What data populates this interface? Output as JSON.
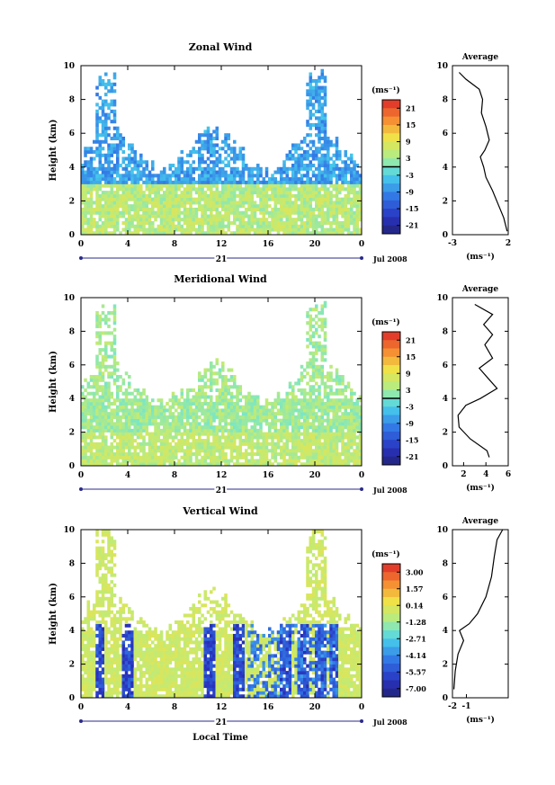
{
  "figure": {
    "date_label": "Jul 2008",
    "day_label": "21",
    "xlabel": "Local Time",
    "ylabel": "Height (km)",
    "unit_label": "(ms⁻¹)",
    "avg_title": "Average",
    "x_ticks": [
      "0",
      "4",
      "8",
      "12",
      "16",
      "20",
      "0"
    ]
  },
  "chart_data": [
    {
      "type": "heatmap",
      "title": "Zonal Wind",
      "xlabel": "",
      "ylabel": "Height (km)",
      "xlim": [
        0,
        24
      ],
      "ylim": [
        0,
        10
      ],
      "y_ticks": [
        0,
        2,
        4,
        6,
        8,
        10
      ],
      "colorbar": {
        "label": "(ms⁻¹)",
        "ticks": [
          "21",
          "15",
          "9",
          "3",
          "-3",
          "-9",
          "-15",
          "-21"
        ],
        "range": [
          -24,
          24
        ]
      },
      "contour_level": 0,
      "profile": {
        "title": "Average",
        "xlim": [
          -3,
          2
        ],
        "x_ticks": [
          "-3",
          "2"
        ],
        "ylim": [
          0,
          10
        ],
        "y_ticks": [
          0,
          2,
          4,
          6,
          8,
          10
        ],
        "xlabel": "(ms⁻¹)",
        "points": [
          [
            1.9,
            0.2
          ],
          [
            1.6,
            1.0
          ],
          [
            1.1,
            1.8
          ],
          [
            0.6,
            2.6
          ],
          [
            0.0,
            3.4
          ],
          [
            -0.2,
            4.0
          ],
          [
            -0.5,
            4.6
          ],
          [
            -0.1,
            5.0
          ],
          [
            0.3,
            5.6
          ],
          [
            0.0,
            6.4
          ],
          [
            -0.4,
            7.2
          ],
          [
            -0.3,
            8.0
          ],
          [
            -0.6,
            8.6
          ],
          [
            -1.8,
            9.2
          ],
          [
            -2.4,
            9.6
          ]
        ]
      }
    },
    {
      "type": "heatmap",
      "title": "Meridional Wind",
      "xlabel": "",
      "ylabel": "Height (km)",
      "xlim": [
        0,
        24
      ],
      "ylim": [
        0,
        10
      ],
      "y_ticks": [
        0,
        2,
        4,
        6,
        8,
        10
      ],
      "colorbar": {
        "label": "(ms⁻¹)",
        "ticks": [
          "21",
          "15",
          "9",
          "3",
          "-3",
          "-9",
          "-15",
          "-21"
        ],
        "range": [
          -24,
          24
        ]
      },
      "contour_level": 0,
      "profile": {
        "title": "Average",
        "xlim": [
          1,
          6
        ],
        "x_ticks": [
          "2",
          "4",
          "6"
        ],
        "ylim": [
          0,
          10
        ],
        "y_ticks": [
          0,
          2,
          4,
          6,
          8,
          10
        ],
        "xlabel": "(ms⁻¹)",
        "points": [
          [
            4.3,
            0.5
          ],
          [
            4.1,
            0.9
          ],
          [
            2.6,
            1.6
          ],
          [
            1.6,
            2.3
          ],
          [
            1.5,
            3.0
          ],
          [
            2.2,
            3.6
          ],
          [
            3.5,
            4.0
          ],
          [
            5.0,
            4.6
          ],
          [
            4.2,
            5.2
          ],
          [
            3.4,
            5.8
          ],
          [
            4.6,
            6.4
          ],
          [
            3.9,
            7.2
          ],
          [
            4.6,
            7.8
          ],
          [
            3.8,
            8.4
          ],
          [
            4.6,
            9.0
          ],
          [
            3.0,
            9.6
          ]
        ]
      }
    },
    {
      "type": "heatmap",
      "title": "Vertical Wind",
      "xlabel": "Local Time",
      "ylabel": "Height (km)",
      "xlim": [
        0,
        24
      ],
      "ylim": [
        0,
        10
      ],
      "y_ticks": [
        0,
        2,
        4,
        6,
        8,
        10
      ],
      "colorbar": {
        "label": "(ms⁻¹)",
        "ticks": [
          "3.00",
          "1.57",
          "0.14",
          "-1.28",
          "-2.71",
          "-4.14",
          "-5.57",
          "-7.00"
        ],
        "range": [
          -7.5,
          3.5
        ]
      },
      "contour_level": null,
      "profile": {
        "title": "Average",
        "xlim": [
          -2,
          2
        ],
        "x_ticks": [
          "-2",
          "-1"
        ],
        "ylim": [
          0,
          10
        ],
        "y_ticks": [
          0,
          2,
          4,
          6,
          8,
          10
        ],
        "xlabel": "(ms⁻¹)",
        "points": [
          [
            -1.9,
            0.5
          ],
          [
            -1.8,
            1.6
          ],
          [
            -1.6,
            2.6
          ],
          [
            -1.2,
            3.4
          ],
          [
            -1.5,
            4.0
          ],
          [
            -0.8,
            4.4
          ],
          [
            -0.2,
            5.0
          ],
          [
            0.4,
            6.0
          ],
          [
            0.8,
            7.2
          ],
          [
            1.0,
            8.4
          ],
          [
            1.2,
            9.4
          ],
          [
            1.6,
            10.0
          ]
        ]
      }
    }
  ]
}
